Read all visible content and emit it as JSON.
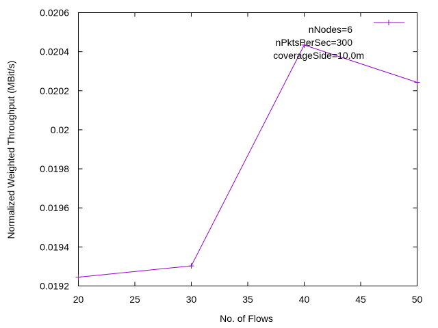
{
  "chart_data": {
    "type": "line",
    "title": "",
    "xlabel": "No. of Flows",
    "ylabel": "Normalized Weighted Throughput (MBit/s)",
    "xlim": [
      20,
      50
    ],
    "ylim": [
      0.0192,
      0.0206
    ],
    "x_ticks": [
      20,
      25,
      30,
      35,
      40,
      45,
      50
    ],
    "x_tick_labels": [
      "20",
      "25",
      "30",
      "35",
      "40",
      "45",
      "50"
    ],
    "y_ticks": [
      0.0192,
      0.0194,
      0.0196,
      0.0198,
      0.02,
      0.0202,
      0.0204,
      0.0206
    ],
    "y_tick_labels": [
      "0.0192",
      "0.0194",
      "0.0196",
      "0.0198",
      "0.02",
      "0.0202",
      "0.0204",
      "0.0206"
    ],
    "grid": false,
    "legend_position": "top-right",
    "annotations": [
      "nNodes=6",
      "nPktsPerSec=300",
      "coverageSide=10.0m"
    ],
    "series": [
      {
        "color": "#9400d3",
        "marker": "plus",
        "x": [
          20,
          30,
          40,
          50
        ],
        "y": [
          0.019245,
          0.019303,
          0.020434,
          0.020243
        ]
      }
    ]
  }
}
